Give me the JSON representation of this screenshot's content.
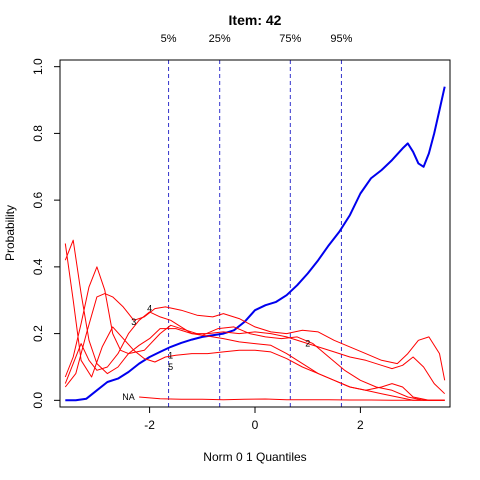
{
  "chart_data": {
    "type": "line",
    "title": "Item:  42",
    "xlabel": "Norm 0 1 Quantiles",
    "ylabel": "Probability",
    "xlim": [
      -3.7,
      3.7
    ],
    "ylim": [
      -0.02,
      1.02
    ],
    "x_ticks": [
      -2,
      0,
      2
    ],
    "y_ticks": [
      0.0,
      0.2,
      0.4,
      0.6,
      0.8,
      1.0
    ],
    "grid": false,
    "quantile_lines": [
      {
        "label": "5%",
        "x": -1.64
      },
      {
        "label": "25%",
        "x": -0.67
      },
      {
        "label": "75%",
        "x": 0.67
      },
      {
        "label": "95%",
        "x": 1.64
      }
    ],
    "colors": {
      "key": "#0000ee",
      "distractor": "#ff0000",
      "quantile": "#3333cc",
      "axis": "#000000"
    },
    "series": [
      {
        "name": "",
        "role": "key",
        "points": [
          [
            -3.6,
            0.0
          ],
          [
            -3.4,
            0.0
          ],
          [
            -3.2,
            0.005
          ],
          [
            -3.0,
            0.03
          ],
          [
            -2.8,
            0.055
          ],
          [
            -2.6,
            0.065
          ],
          [
            -2.4,
            0.085
          ],
          [
            -2.2,
            0.11
          ],
          [
            -2.0,
            0.13
          ],
          [
            -1.8,
            0.145
          ],
          [
            -1.6,
            0.16
          ],
          [
            -1.4,
            0.172
          ],
          [
            -1.2,
            0.182
          ],
          [
            -1.0,
            0.19
          ],
          [
            -0.8,
            0.195
          ],
          [
            -0.6,
            0.2
          ],
          [
            -0.4,
            0.21
          ],
          [
            -0.2,
            0.235
          ],
          [
            0.0,
            0.27
          ],
          [
            0.2,
            0.285
          ],
          [
            0.4,
            0.295
          ],
          [
            0.6,
            0.315
          ],
          [
            0.8,
            0.345
          ],
          [
            1.0,
            0.38
          ],
          [
            1.2,
            0.42
          ],
          [
            1.4,
            0.465
          ],
          [
            1.6,
            0.505
          ],
          [
            1.8,
            0.555
          ],
          [
            2.0,
            0.62
          ],
          [
            2.2,
            0.665
          ],
          [
            2.4,
            0.69
          ],
          [
            2.6,
            0.72
          ],
          [
            2.8,
            0.755
          ],
          [
            2.9,
            0.77
          ],
          [
            3.0,
            0.745
          ],
          [
            3.1,
            0.71
          ],
          [
            3.2,
            0.7
          ],
          [
            3.3,
            0.74
          ],
          [
            3.4,
            0.8
          ],
          [
            3.5,
            0.87
          ],
          [
            3.6,
            0.94
          ]
        ]
      },
      {
        "name": "1",
        "role": "distractor",
        "points": [
          [
            -3.6,
            0.47
          ],
          [
            -3.45,
            0.3
          ],
          [
            -3.3,
            0.12
          ],
          [
            -3.1,
            0.07
          ],
          [
            -2.9,
            0.16
          ],
          [
            -2.7,
            0.22
          ],
          [
            -2.5,
            0.185
          ],
          [
            -2.3,
            0.15
          ],
          [
            -2.1,
            0.125
          ],
          [
            -1.9,
            0.115
          ],
          [
            -1.7,
            0.13
          ],
          [
            -1.5,
            0.135
          ],
          [
            -1.2,
            0.14
          ],
          [
            -0.9,
            0.14
          ],
          [
            -0.6,
            0.145
          ],
          [
            -0.3,
            0.15
          ],
          [
            0.0,
            0.15
          ],
          [
            0.3,
            0.145
          ],
          [
            0.6,
            0.125
          ],
          [
            0.9,
            0.1
          ],
          [
            1.2,
            0.08
          ],
          [
            1.5,
            0.06
          ],
          [
            1.8,
            0.04
          ],
          [
            2.1,
            0.03
          ],
          [
            2.4,
            0.04
          ],
          [
            2.6,
            0.05
          ],
          [
            2.8,
            0.04
          ],
          [
            3.0,
            0.01
          ],
          [
            3.3,
            0.0
          ],
          [
            3.6,
            0.0
          ]
        ]
      },
      {
        "name": "2",
        "role": "distractor",
        "points": [
          [
            -3.6,
            0.42
          ],
          [
            -3.45,
            0.48
          ],
          [
            -3.3,
            0.32
          ],
          [
            -3.15,
            0.18
          ],
          [
            -3.0,
            0.11
          ],
          [
            -2.8,
            0.08
          ],
          [
            -2.6,
            0.1
          ],
          [
            -2.4,
            0.14
          ],
          [
            -2.2,
            0.165
          ],
          [
            -2.0,
            0.185
          ],
          [
            -1.8,
            0.215
          ],
          [
            -1.5,
            0.215
          ],
          [
            -1.2,
            0.2
          ],
          [
            -0.9,
            0.2
          ],
          [
            -0.6,
            0.205
          ],
          [
            -0.3,
            0.2
          ],
          [
            0.0,
            0.205
          ],
          [
            0.3,
            0.2
          ],
          [
            0.6,
            0.19
          ],
          [
            0.9,
            0.175
          ],
          [
            1.2,
            0.16
          ],
          [
            1.5,
            0.145
          ],
          [
            1.8,
            0.13
          ],
          [
            2.1,
            0.12
          ],
          [
            2.4,
            0.105
          ],
          [
            2.6,
            0.095
          ],
          [
            2.8,
            0.105
          ],
          [
            3.0,
            0.13
          ],
          [
            3.2,
            0.1
          ],
          [
            3.4,
            0.05
          ],
          [
            3.6,
            0.02
          ]
        ]
      },
      {
        "name": "3",
        "role": "distractor",
        "points": [
          [
            -3.6,
            0.07
          ],
          [
            -3.45,
            0.13
          ],
          [
            -3.3,
            0.23
          ],
          [
            -3.15,
            0.34
          ],
          [
            -3.0,
            0.4
          ],
          [
            -2.85,
            0.33
          ],
          [
            -2.7,
            0.2
          ],
          [
            -2.55,
            0.15
          ],
          [
            -2.4,
            0.14
          ],
          [
            -2.1,
            0.15
          ],
          [
            -1.8,
            0.2
          ],
          [
            -1.6,
            0.225
          ],
          [
            -1.3,
            0.21
          ],
          [
            -1.0,
            0.195
          ],
          [
            -0.7,
            0.215
          ],
          [
            -0.4,
            0.22
          ],
          [
            -0.1,
            0.2
          ],
          [
            0.2,
            0.19
          ],
          [
            0.5,
            0.185
          ],
          [
            0.8,
            0.19
          ],
          [
            1.1,
            0.17
          ],
          [
            1.4,
            0.13
          ],
          [
            1.7,
            0.09
          ],
          [
            2.0,
            0.06
          ],
          [
            2.3,
            0.04
          ],
          [
            2.6,
            0.03
          ],
          [
            2.9,
            0.01
          ],
          [
            3.2,
            0.0
          ],
          [
            3.6,
            0.0
          ]
        ]
      },
      {
        "name": "4",
        "role": "distractor",
        "points": [
          [
            -3.6,
            0.04
          ],
          [
            -3.4,
            0.08
          ],
          [
            -3.2,
            0.2
          ],
          [
            -3.0,
            0.31
          ],
          [
            -2.85,
            0.32
          ],
          [
            -2.7,
            0.31
          ],
          [
            -2.5,
            0.28
          ],
          [
            -2.3,
            0.24
          ],
          [
            -2.1,
            0.25
          ],
          [
            -1.9,
            0.275
          ],
          [
            -1.7,
            0.28
          ],
          [
            -1.4,
            0.27
          ],
          [
            -1.1,
            0.255
          ],
          [
            -0.8,
            0.25
          ],
          [
            -0.6,
            0.26
          ],
          [
            -0.3,
            0.245
          ],
          [
            0.0,
            0.22
          ],
          [
            0.3,
            0.205
          ],
          [
            0.6,
            0.2
          ],
          [
            0.9,
            0.21
          ],
          [
            1.2,
            0.205
          ],
          [
            1.5,
            0.18
          ],
          [
            1.8,
            0.16
          ],
          [
            2.1,
            0.14
          ],
          [
            2.4,
            0.12
          ],
          [
            2.7,
            0.11
          ],
          [
            2.9,
            0.14
          ],
          [
            3.1,
            0.18
          ],
          [
            3.3,
            0.19
          ],
          [
            3.5,
            0.14
          ],
          [
            3.6,
            0.06
          ]
        ]
      },
      {
        "name": "5",
        "role": "distractor",
        "points": [
          [
            -3.6,
            0.05
          ],
          [
            -3.45,
            0.11
          ],
          [
            -3.3,
            0.17
          ],
          [
            -3.15,
            0.12
          ],
          [
            -3.0,
            0.09
          ],
          [
            -2.8,
            0.1
          ],
          [
            -2.6,
            0.14
          ],
          [
            -2.4,
            0.2
          ],
          [
            -2.2,
            0.24
          ],
          [
            -2.0,
            0.265
          ],
          [
            -1.8,
            0.25
          ],
          [
            -1.6,
            0.24
          ],
          [
            -1.4,
            0.22
          ],
          [
            -1.2,
            0.2
          ],
          [
            -1.0,
            0.195
          ],
          [
            -0.8,
            0.19
          ],
          [
            -0.6,
            0.185
          ],
          [
            -0.3,
            0.175
          ],
          [
            0.0,
            0.17
          ],
          [
            0.3,
            0.165
          ],
          [
            0.6,
            0.14
          ],
          [
            0.9,
            0.11
          ],
          [
            1.2,
            0.08
          ],
          [
            1.5,
            0.06
          ],
          [
            1.8,
            0.04
          ],
          [
            2.1,
            0.03
          ],
          [
            2.4,
            0.02
          ],
          [
            2.7,
            0.01
          ],
          [
            3.0,
            0.0
          ],
          [
            3.3,
            0.0
          ],
          [
            3.6,
            0.0
          ]
        ]
      },
      {
        "name": "NA",
        "role": "distractor",
        "points": [
          [
            -2.2,
            0.01
          ],
          [
            -1.8,
            0.005
          ],
          [
            -1.4,
            0.003
          ],
          [
            -1.0,
            0.003
          ],
          [
            -0.6,
            0.002
          ],
          [
            -0.2,
            0.003
          ],
          [
            0.2,
            0.004
          ],
          [
            0.6,
            0.002
          ],
          [
            1.0,
            0.002
          ],
          [
            1.4,
            0.002
          ],
          [
            1.8,
            0.001
          ],
          [
            2.2,
            0.001
          ],
          [
            2.6,
            0.0
          ],
          [
            3.0,
            0.0
          ],
          [
            3.6,
            0.0
          ]
        ]
      }
    ],
    "curve_labels": [
      {
        "text": "4",
        "x": -2.0,
        "y": 0.275
      },
      {
        "text": "3",
        "x": -2.3,
        "y": 0.235
      },
      {
        "text": "1",
        "x": -1.6,
        "y": 0.135
      },
      {
        "text": "5",
        "x": -1.6,
        "y": 0.1
      },
      {
        "text": "2",
        "x": 1.0,
        "y": 0.17
      },
      {
        "text": "NA",
        "x": -2.4,
        "y": 0.01
      }
    ]
  }
}
